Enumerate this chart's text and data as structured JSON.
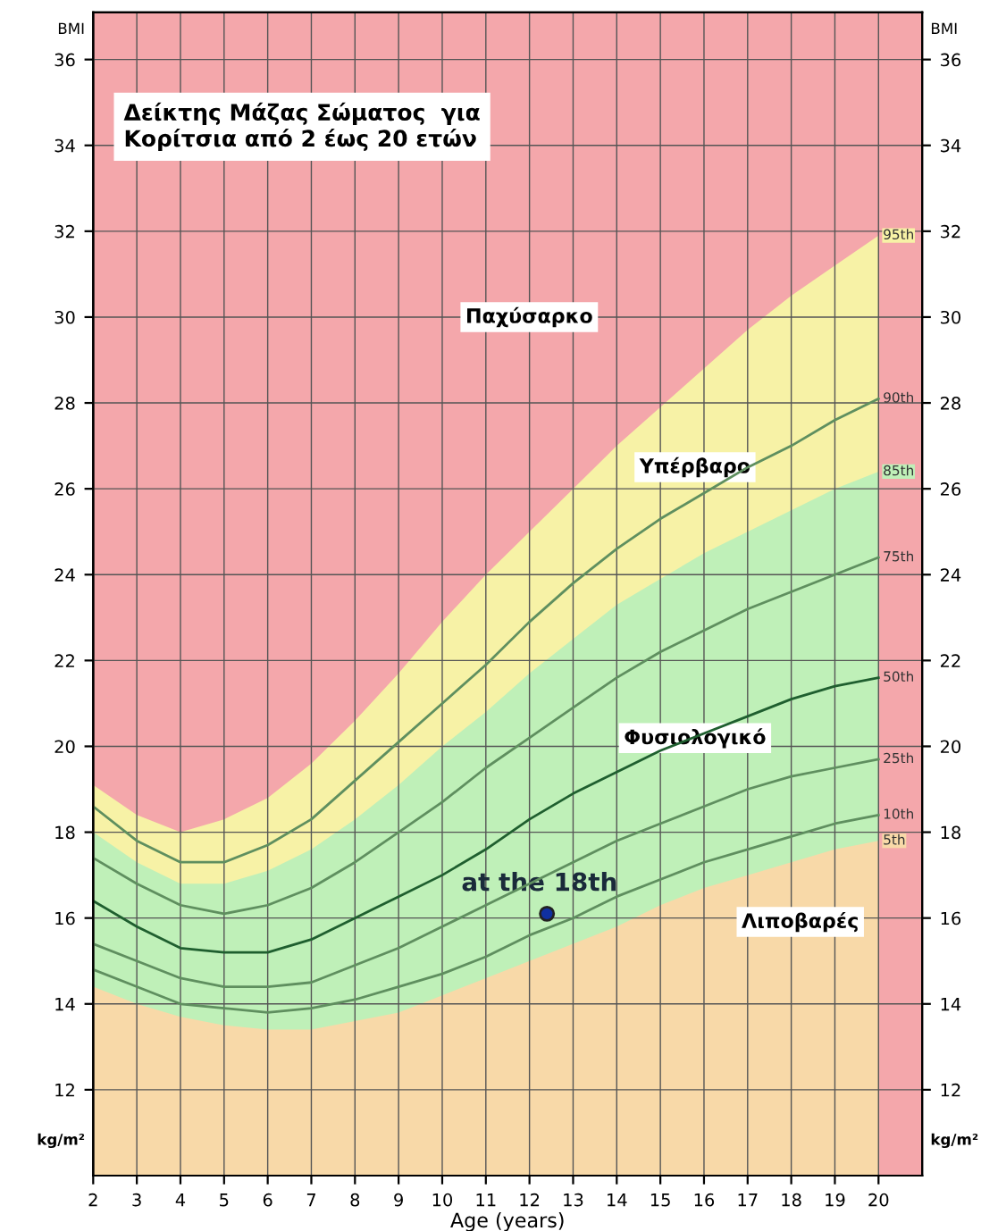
{
  "chart_data": {
    "type": "line",
    "title": "Δείκτης Μάζας Σώματος  για\nΚορίτσια από 2 έως 20 ετών",
    "xlabel": "Age (years)",
    "ylabel": "BMI",
    "y2label": "BMI",
    "x": [
      2,
      3,
      4,
      5,
      6,
      7,
      8,
      9,
      10,
      11,
      12,
      13,
      14,
      15,
      16,
      17,
      18,
      19,
      20
    ],
    "series": [
      {
        "name": "95th",
        "type": "area",
        "color": "#f7f2a6",
        "values": [
          19.1,
          18.4,
          18.0,
          18.3,
          18.8,
          19.6,
          20.6,
          21.7,
          22.9,
          24.0,
          25.0,
          26.0,
          27.0,
          27.9,
          28.8,
          29.7,
          30.5,
          31.2,
          31.9
        ]
      },
      {
        "name": "85th",
        "type": "area",
        "color": "#bff0b8",
        "values": [
          18.0,
          17.3,
          16.8,
          16.8,
          17.1,
          17.6,
          18.3,
          19.1,
          20.0,
          20.8,
          21.7,
          22.5,
          23.3,
          23.9,
          24.5,
          25.0,
          25.5,
          26.0,
          26.4
        ]
      },
      {
        "name": "5th",
        "type": "area",
        "color": "#f8d9a8",
        "values": [
          14.4,
          14.0,
          13.7,
          13.5,
          13.4,
          13.4,
          13.6,
          13.8,
          14.2,
          14.6,
          15.0,
          15.4,
          15.8,
          16.3,
          16.7,
          17.0,
          17.3,
          17.6,
          17.8
        ]
      },
      {
        "name": "90th",
        "color": "#5f8f5f",
        "values": [
          18.6,
          17.8,
          17.3,
          17.3,
          17.7,
          18.3,
          19.2,
          20.1,
          21.0,
          21.9,
          22.9,
          23.8,
          24.6,
          25.3,
          25.9,
          26.5,
          27.0,
          27.6,
          28.1
        ]
      },
      {
        "name": "75th",
        "color": "#5f8f5f",
        "values": [
          17.4,
          16.8,
          16.3,
          16.1,
          16.3,
          16.7,
          17.3,
          18.0,
          18.7,
          19.5,
          20.2,
          20.9,
          21.6,
          22.2,
          22.7,
          23.2,
          23.6,
          24.0,
          24.4
        ]
      },
      {
        "name": "50th",
        "color": "#1f5f2f",
        "values": [
          16.4,
          15.8,
          15.3,
          15.2,
          15.2,
          15.5,
          16.0,
          16.5,
          17.0,
          17.6,
          18.3,
          18.9,
          19.4,
          19.9,
          20.3,
          20.7,
          21.1,
          21.4,
          21.6
        ]
      },
      {
        "name": "25th",
        "color": "#5f8f5f",
        "values": [
          15.4,
          15.0,
          14.6,
          14.4,
          14.4,
          14.5,
          14.9,
          15.3,
          15.8,
          16.3,
          16.8,
          17.3,
          17.8,
          18.2,
          18.6,
          19.0,
          19.3,
          19.5,
          19.7
        ]
      },
      {
        "name": "10th",
        "color": "#5f8f5f",
        "values": [
          14.8,
          14.4,
          14.0,
          13.9,
          13.8,
          13.9,
          14.1,
          14.4,
          14.7,
          15.1,
          15.6,
          16.0,
          16.5,
          16.9,
          17.3,
          17.6,
          17.9,
          18.2,
          18.4
        ]
      },
      {
        "type": "scatter",
        "marker": "circle",
        "color": "#1030a0",
        "x": [
          12.4
        ],
        "values": [
          16.1
        ]
      }
    ],
    "annotations": [
      "Παχύσαρκο",
      "Υπέρβαρο",
      "Φυσιολογικό",
      "Λιποβαρές",
      {
        "text": "at the 18th",
        "x": 12.4,
        "y": 16.1
      },
      "kg/m²",
      "kg/m²"
    ],
    "xlim": [
      2,
      21
    ],
    "ylim": [
      10,
      37.1
    ],
    "y2lim": [
      10,
      37.1
    ],
    "xticks": [
      2,
      3,
      4,
      5,
      6,
      7,
      8,
      9,
      10,
      11,
      12,
      13,
      14,
      15,
      16,
      17,
      18,
      19,
      20
    ],
    "yticks": [
      12,
      14,
      16,
      18,
      20,
      22,
      24,
      26,
      28,
      30,
      32,
      34,
      36
    ],
    "y2ticks": [
      12,
      14,
      16,
      18,
      20,
      22,
      24,
      26,
      28,
      30,
      32,
      34,
      36
    ],
    "grid": true,
    "legend": false,
    "marker": "none",
    "line_style": "solid"
  }
}
